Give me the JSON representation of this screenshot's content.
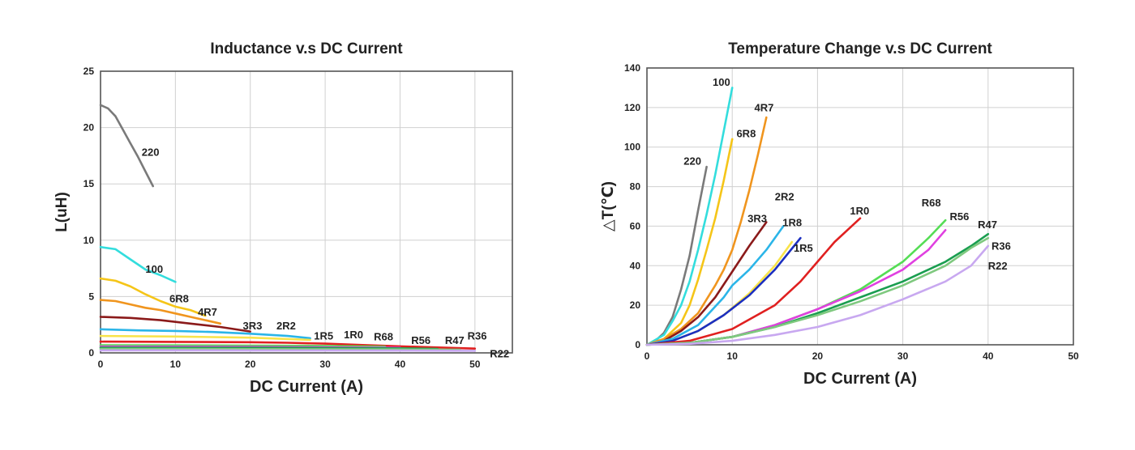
{
  "chart_data": [
    {
      "type": "line",
      "title": "Inductance v.s DC Current",
      "xlabel": "DC Current (A)",
      "ylabel": "L(uH)",
      "xlim": [
        0,
        55
      ],
      "ylim": [
        0,
        25
      ],
      "xticks": [
        0,
        10,
        20,
        30,
        40,
        50
      ],
      "yticks": [
        0,
        5,
        10,
        15,
        20,
        25
      ],
      "grid": true,
      "series": [
        {
          "name": "220",
          "color": "#7a7a7a",
          "x": [
            0,
            1,
            2,
            3,
            4,
            5,
            6,
            7
          ],
          "y": [
            22,
            21.7,
            21,
            19.8,
            18.6,
            17.4,
            16.1,
            14.8
          ],
          "label_at": [
            5.5,
            17.5
          ]
        },
        {
          "name": "100",
          "color": "#33dddd",
          "x": [
            0,
            2,
            4,
            6,
            8,
            10
          ],
          "y": [
            9.4,
            9.2,
            8.3,
            7.4,
            6.9,
            6.3
          ],
          "label_at": [
            6,
            7.1
          ]
        },
        {
          "name": "6R8",
          "color": "#f5c518",
          "x": [
            0,
            2,
            4,
            6,
            8,
            10,
            12,
            14
          ],
          "y": [
            6.6,
            6.4,
            5.9,
            5.2,
            4.6,
            4.1,
            3.8,
            3.3
          ],
          "label_at": [
            9.2,
            4.5
          ]
        },
        {
          "name": "4R7",
          "color": "#f0951e",
          "x": [
            0,
            2,
            4,
            6,
            8,
            10,
            12,
            14,
            16
          ],
          "y": [
            4.7,
            4.6,
            4.3,
            4.0,
            3.8,
            3.5,
            3.2,
            2.9,
            2.6
          ],
          "label_at": [
            13,
            3.3
          ]
        },
        {
          "name": "3R3",
          "color": "#8b1a1a",
          "x": [
            0,
            4,
            8,
            12,
            16,
            20
          ],
          "y": [
            3.2,
            3.1,
            2.9,
            2.6,
            2.3,
            1.9
          ],
          "label_at": [
            19,
            2.1
          ]
        },
        {
          "name": "2R2",
          "color": "#2bb5e8",
          "x": [
            0,
            5,
            10,
            15,
            20,
            25,
            28
          ],
          "y": [
            2.1,
            2.0,
            1.95,
            1.85,
            1.7,
            1.5,
            1.3
          ],
          "label_at": [
            23.5,
            2.1
          ]
        },
        {
          "name": "1R5",
          "color": "#f8e34a",
          "x": [
            0,
            10,
            20,
            28
          ],
          "y": [
            1.5,
            1.45,
            1.35,
            1.15
          ],
          "label_at": [
            28.5,
            1.2
          ]
        },
        {
          "name": "1R0",
          "color": "#e02020",
          "x": [
            0,
            10,
            20,
            25,
            30,
            35,
            40,
            45,
            50
          ],
          "y": [
            1.0,
            0.98,
            0.95,
            0.9,
            0.82,
            0.7,
            0.58,
            0.48,
            0.38
          ],
          "label_at": [
            32.5,
            1.3
          ]
        },
        {
          "name": "R68",
          "color": "#55dd55",
          "x": [
            0,
            10,
            20,
            30,
            38
          ],
          "y": [
            0.68,
            0.67,
            0.65,
            0.62,
            0.55
          ],
          "label_at": [
            36.5,
            1.1
          ]
        },
        {
          "name": "R56",
          "color": "#e040e0",
          "x": [
            0,
            10,
            20,
            30,
            40
          ],
          "y": [
            0.56,
            0.55,
            0.54,
            0.5,
            0.45
          ],
          "label_at": [
            41.5,
            0.8
          ]
        },
        {
          "name": "R47",
          "color": "#1a9e50",
          "x": [
            0,
            10,
            20,
            30,
            40,
            45
          ],
          "y": [
            0.47,
            0.46,
            0.45,
            0.43,
            0.4,
            0.36
          ],
          "label_at": [
            46,
            0.8
          ]
        },
        {
          "name": "R36",
          "color": "#7fc97f",
          "x": [
            0,
            10,
            20,
            30,
            40,
            48
          ],
          "y": [
            0.36,
            0.35,
            0.34,
            0.33,
            0.31,
            0.29
          ],
          "label_at": [
            49,
            1.2
          ]
        },
        {
          "name": "R22",
          "color": "#c8a8f0",
          "x": [
            0,
            10,
            20,
            30,
            40,
            50
          ],
          "y": [
            0.22,
            0.22,
            0.21,
            0.21,
            0.2,
            0.19
          ],
          "label_at": [
            52,
            -0.4
          ]
        }
      ]
    },
    {
      "type": "line",
      "title": "Temperature Change v.s DC Current",
      "xlabel": "DC Current (A)",
      "ylabel": "△T(℃)",
      "xlim": [
        0,
        50
      ],
      "ylim": [
        0,
        140
      ],
      "xticks": [
        0,
        10,
        20,
        30,
        40,
        50
      ],
      "yticks": [
        0,
        20,
        40,
        60,
        80,
        100,
        120,
        140
      ],
      "grid": true,
      "series": [
        {
          "name": "220",
          "color": "#7a7a7a",
          "x": [
            0,
            1,
            2,
            3,
            4,
            5,
            6,
            7
          ],
          "y": [
            0,
            2,
            6,
            14,
            28,
            45,
            68,
            90
          ],
          "label_at": [
            4.3,
            91
          ]
        },
        {
          "name": "100",
          "color": "#33dddd",
          "x": [
            0,
            2,
            3,
            4,
            5,
            6,
            7,
            8,
            9,
            10
          ],
          "y": [
            0,
            5,
            12,
            20,
            32,
            48,
            66,
            86,
            108,
            130
          ],
          "label_at": [
            7.7,
            131
          ]
        },
        {
          "name": "6R8",
          "color": "#f5c518",
          "x": [
            0,
            2,
            4,
            5,
            6,
            7,
            8,
            9,
            10
          ],
          "y": [
            0,
            3,
            11,
            20,
            33,
            48,
            64,
            83,
            104
          ],
          "label_at": [
            10.5,
            105
          ]
        },
        {
          "name": "4R7",
          "color": "#f0951e",
          "x": [
            0,
            2,
            4,
            6,
            8,
            9,
            10,
            11,
            12,
            13,
            14
          ],
          "y": [
            0,
            3,
            8,
            16,
            30,
            38,
            48,
            62,
            78,
            96,
            115
          ],
          "label_at": [
            12.6,
            118
          ]
        },
        {
          "name": "3R3",
          "color": "#8b1a1a",
          "x": [
            0,
            2,
            4,
            6,
            8,
            10,
            12,
            14
          ],
          "y": [
            0,
            2,
            7,
            14,
            24,
            37,
            50,
            62
          ],
          "label_at": [
            11.8,
            62
          ]
        },
        {
          "name": "2R2",
          "color": "#2bb5e8",
          "x": [
            0,
            3,
            6,
            9,
            10,
            12,
            14,
            16
          ],
          "y": [
            0,
            3,
            10,
            24,
            30,
            38,
            48,
            60
          ],
          "label_at": [
            15,
            73
          ]
        },
        {
          "name": "1R8",
          "color": "#f8e34a",
          "x": [
            0,
            3,
            6,
            9,
            12,
            15,
            17
          ],
          "y": [
            0,
            2,
            7,
            15,
            26,
            40,
            52
          ],
          "label_at": [
            15.9,
            60
          ]
        },
        {
          "name": "1R5",
          "color": "#1c2fc0",
          "x": [
            0,
            3,
            6,
            9,
            12,
            15,
            18
          ],
          "y": [
            0,
            2,
            7,
            15,
            25,
            38,
            54
          ],
          "label_at": [
            17.2,
            47
          ]
        },
        {
          "name": "1R0",
          "color": "#e02020",
          "x": [
            0,
            5,
            10,
            15,
            18,
            20,
            22,
            24,
            25
          ],
          "y": [
            0,
            2,
            8,
            20,
            32,
            42,
            52,
            60,
            64
          ],
          "label_at": [
            23.8,
            66
          ]
        },
        {
          "name": "R68",
          "color": "#55dd55",
          "x": [
            0,
            5,
            10,
            15,
            20,
            25,
            30,
            33,
            35
          ],
          "y": [
            0,
            1,
            4,
            10,
            18,
            28,
            42,
            54,
            63
          ],
          "label_at": [
            32.2,
            70
          ]
        },
        {
          "name": "R56",
          "color": "#e040e0",
          "x": [
            0,
            5,
            10,
            15,
            20,
            25,
            30,
            33,
            35
          ],
          "y": [
            0,
            1,
            4,
            10,
            18,
            27,
            38,
            48,
            58
          ],
          "label_at": [
            35.5,
            63
          ]
        },
        {
          "name": "R47",
          "color": "#1a9e50",
          "x": [
            0,
            5,
            10,
            15,
            20,
            25,
            30,
            35,
            38,
            40
          ],
          "y": [
            0,
            1,
            4,
            9,
            16,
            24,
            32,
            42,
            50,
            56
          ],
          "label_at": [
            38.8,
            59
          ]
        },
        {
          "name": "R36",
          "color": "#7fc97f",
          "x": [
            0,
            5,
            10,
            15,
            20,
            25,
            30,
            35,
            38,
            40
          ],
          "y": [
            0,
            1,
            4,
            9,
            15,
            22,
            30,
            40,
            49,
            54
          ],
          "label_at": [
            40.4,
            48
          ]
        },
        {
          "name": "R22",
          "color": "#c8a8f0",
          "x": [
            0,
            5,
            10,
            15,
            20,
            25,
            30,
            35,
            38,
            40
          ],
          "y": [
            0,
            0.5,
            2,
            5,
            9,
            15,
            23,
            32,
            40,
            50
          ],
          "label_at": [
            40,
            38
          ]
        }
      ]
    }
  ]
}
